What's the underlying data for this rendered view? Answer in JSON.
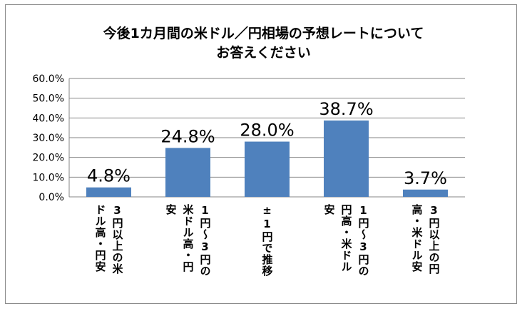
{
  "chart_data": {
    "type": "bar",
    "title": [
      "今後1カ月間の米ドル／円相場の予想レートについて",
      "お答えください"
    ],
    "categories": [
      [
        "3円以上の米",
        "ドル高・円安"
      ],
      [
        "1円～3円の",
        "米ドル高・円",
        "安"
      ],
      [
        "±1円で推移"
      ],
      [
        "1円～3円の",
        "円高・米ドル",
        "安"
      ],
      [
        "3円以上の円",
        "高・米ドル安"
      ]
    ],
    "values": [
      4.8,
      24.8,
      28.0,
      38.7,
      3.7
    ],
    "value_labels": [
      "4.8%",
      "24.8%",
      "28.0%",
      "38.7%",
      "3.7%"
    ],
    "y_ticks": [
      "0.0%",
      "10.0%",
      "20.0%",
      "30.0%",
      "40.0%",
      "50.0%",
      "60.0%"
    ],
    "ylim": [
      0,
      60
    ],
    "grid": true,
    "xlabel": "",
    "ylabel": "",
    "bar_color": "#4f81bd",
    "grid_color": "#868686"
  }
}
